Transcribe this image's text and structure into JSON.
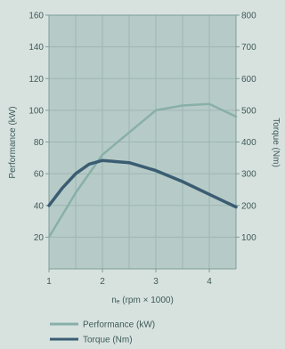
{
  "colors": {
    "background": "#d7e2df",
    "plot_background": "#b6cbc7",
    "performance": "#89afa9",
    "torque": "#3b5d73",
    "text": "#3f5a56"
  },
  "chart_data": {
    "type": "line",
    "xlabel": "nₑ (rpm × 1000)",
    "ylabel_left": "Performance (kW)",
    "ylabel_right": "Torque (Nm)",
    "x_ticks": [
      "1",
      "2",
      "3",
      "4"
    ],
    "xlim": [
      1,
      4.5
    ],
    "y_left_ticks": [
      "20",
      "40",
      "60",
      "80",
      "100",
      "120",
      "140",
      "160"
    ],
    "ylim_left": [
      0,
      160
    ],
    "y_right_ticks": [
      "100",
      "200",
      "300",
      "400",
      "500",
      "600",
      "700",
      "800"
    ],
    "ylim_right": [
      0,
      800
    ],
    "grid": true,
    "legend_position": "bottom",
    "series": [
      {
        "name": "Performance (kW)",
        "axis": "left",
        "x": [
          1.0,
          1.5,
          2.0,
          2.5,
          3.0,
          3.5,
          4.0,
          4.5
        ],
        "y": [
          20,
          48,
          72,
          86,
          100,
          103,
          104,
          96
        ]
      },
      {
        "name": "Torque (Nm)",
        "axis": "right",
        "x": [
          1.0,
          1.25,
          1.5,
          1.75,
          2.0,
          2.5,
          3.0,
          3.5,
          4.0,
          4.5
        ],
        "y": [
          200,
          255,
          300,
          330,
          342,
          335,
          310,
          275,
          235,
          195
        ]
      }
    ]
  }
}
